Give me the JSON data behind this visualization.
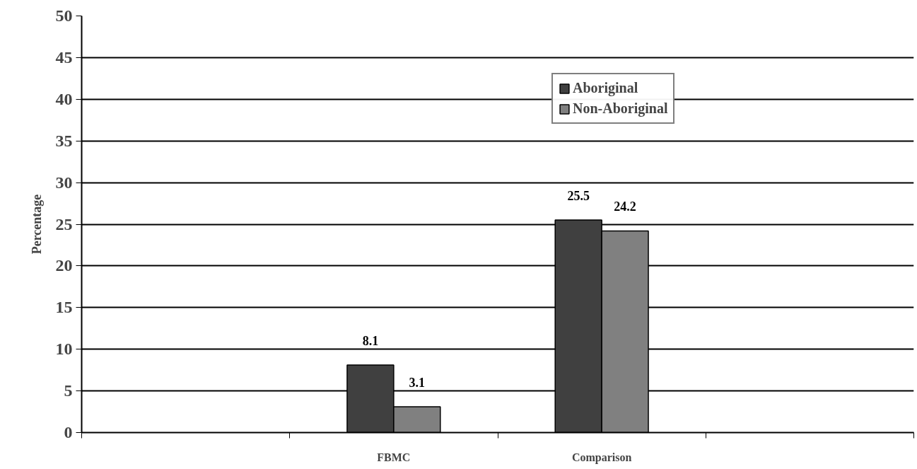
{
  "chart_data": {
    "type": "bar",
    "ylabel": "Percentage",
    "categories": [
      null,
      "FBMC",
      "Comparison",
      null
    ],
    "series": [
      {
        "name": "Aboriginal",
        "color": "#404040",
        "values": [
          null,
          8.1,
          25.5,
          null
        ]
      },
      {
        "name": "Non-Aboriginal",
        "color": "#808080",
        "values": [
          null,
          3.1,
          24.2,
          null
        ]
      }
    ],
    "ylim": [
      0,
      50
    ],
    "yticks": [
      0,
      5,
      10,
      15,
      20,
      25,
      30,
      35,
      40,
      45,
      50
    ],
    "grid": "y",
    "legend": "top right",
    "data_labels": true
  }
}
